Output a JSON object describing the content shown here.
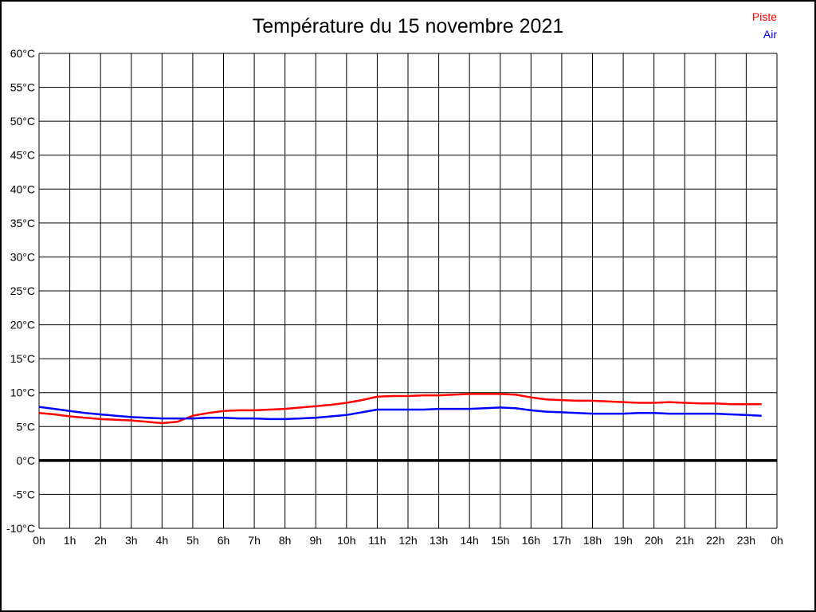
{
  "page": {
    "background": "#ffffff",
    "border_color": "#000000"
  },
  "chart_data": {
    "type": "line",
    "title": "Température du 15 novembre 2021",
    "xlabel": "",
    "ylabel": "",
    "grid": true,
    "grid_color": "#000000",
    "zero_line_value": 0,
    "zero_line_color": "#000000",
    "legend_position": "top-right",
    "x_range": [
      0,
      24
    ],
    "y_range": [
      -10,
      60
    ],
    "y_ticks": [
      {
        "value": 60,
        "label": "60°C"
      },
      {
        "value": 55,
        "label": "55°C"
      },
      {
        "value": 50,
        "label": "50°C"
      },
      {
        "value": 45,
        "label": "45°C"
      },
      {
        "value": 40,
        "label": "40°C"
      },
      {
        "value": 35,
        "label": "35°C"
      },
      {
        "value": 30,
        "label": "30°C"
      },
      {
        "value": 25,
        "label": "25°C"
      },
      {
        "value": 20,
        "label": "20°C"
      },
      {
        "value": 15,
        "label": "15°C"
      },
      {
        "value": 10,
        "label": "10°C"
      },
      {
        "value": 5,
        "label": "5°C"
      },
      {
        "value": 0,
        "label": "0°C"
      },
      {
        "value": -5,
        "label": "-5°C"
      },
      {
        "value": -10,
        "label": "-10°C"
      }
    ],
    "x_ticks": [
      {
        "value": 0,
        "label": "0h"
      },
      {
        "value": 1,
        "label": "1h"
      },
      {
        "value": 2,
        "label": "2h"
      },
      {
        "value": 3,
        "label": "3h"
      },
      {
        "value": 4,
        "label": "4h"
      },
      {
        "value": 5,
        "label": "5h"
      },
      {
        "value": 6,
        "label": "6h"
      },
      {
        "value": 7,
        "label": "7h"
      },
      {
        "value": 8,
        "label": "8h"
      },
      {
        "value": 9,
        "label": "9h"
      },
      {
        "value": 10,
        "label": "10h"
      },
      {
        "value": 11,
        "label": "11h"
      },
      {
        "value": 12,
        "label": "12h"
      },
      {
        "value": 13,
        "label": "13h"
      },
      {
        "value": 14,
        "label": "14h"
      },
      {
        "value": 15,
        "label": "15h"
      },
      {
        "value": 16,
        "label": "16h"
      },
      {
        "value": 17,
        "label": "17h"
      },
      {
        "value": 18,
        "label": "18h"
      },
      {
        "value": 19,
        "label": "19h"
      },
      {
        "value": 20,
        "label": "20h"
      },
      {
        "value": 21,
        "label": "21h"
      },
      {
        "value": 22,
        "label": "22h"
      },
      {
        "value": 23,
        "label": "23h"
      },
      {
        "value": 24,
        "label": "0h"
      }
    ],
    "x": [
      0,
      0.5,
      1,
      1.5,
      2,
      2.5,
      3,
      3.5,
      4,
      4.5,
      5,
      5.5,
      6,
      6.5,
      7,
      7.5,
      8,
      8.5,
      9,
      9.5,
      10,
      10.5,
      11,
      11.5,
      12,
      12.5,
      13,
      13.5,
      14,
      14.5,
      15,
      15.5,
      16,
      16.5,
      17,
      17.5,
      18,
      18.5,
      19,
      19.5,
      20,
      20.5,
      21,
      21.5,
      22,
      22.5,
      23,
      23.5
    ],
    "series": [
      {
        "name": "Piste",
        "color": "#ff0000",
        "values": [
          7.0,
          6.8,
          6.5,
          6.3,
          6.1,
          6.0,
          5.9,
          5.7,
          5.5,
          5.7,
          6.6,
          7.0,
          7.3,
          7.4,
          7.4,
          7.5,
          7.6,
          7.8,
          8.0,
          8.2,
          8.5,
          8.9,
          9.4,
          9.5,
          9.5,
          9.6,
          9.6,
          9.7,
          9.8,
          9.8,
          9.8,
          9.7,
          9.3,
          9.0,
          8.9,
          8.8,
          8.8,
          8.7,
          8.6,
          8.5,
          8.5,
          8.6,
          8.5,
          8.4,
          8.4,
          8.3,
          8.3,
          8.3
        ]
      },
      {
        "name": "Air",
        "color": "#0000ff",
        "values": [
          7.9,
          7.6,
          7.3,
          7.0,
          6.8,
          6.6,
          6.4,
          6.3,
          6.2,
          6.2,
          6.2,
          6.3,
          6.3,
          6.2,
          6.2,
          6.1,
          6.1,
          6.2,
          6.3,
          6.5,
          6.7,
          7.1,
          7.5,
          7.5,
          7.5,
          7.5,
          7.6,
          7.6,
          7.6,
          7.7,
          7.8,
          7.7,
          7.4,
          7.2,
          7.1,
          7.0,
          6.9,
          6.9,
          6.9,
          7.0,
          7.0,
          6.9,
          6.9,
          6.9,
          6.9,
          6.8,
          6.7,
          6.6
        ]
      }
    ]
  }
}
